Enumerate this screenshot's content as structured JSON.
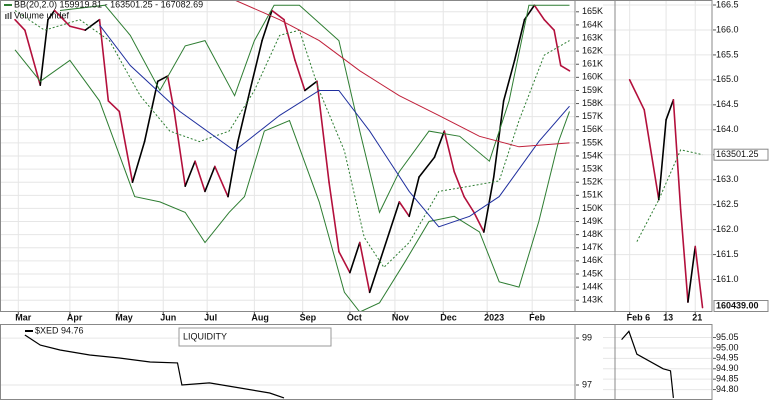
{
  "chart_data": [
    {
      "type": "line",
      "legend": [
        "BB(20,2.0) 159919.81 - 163501.25 - 167082.69",
        "Volume undef"
      ],
      "xlim": [
        0,
        51
      ],
      "ylim": [
        142100,
        165900
      ],
      "grid": true,
      "xticks": [
        {
          "value": 0.3,
          "label": "Mar"
        },
        {
          "value": 5,
          "label": "Apr"
        },
        {
          "value": 9.4,
          "label": "May"
        },
        {
          "value": 13.5,
          "label": "Jun"
        },
        {
          "value": 17.5,
          "label": "Jul"
        },
        {
          "value": 21.8,
          "label": "Aug"
        },
        {
          "value": 26.2,
          "label": "Sep"
        },
        {
          "value": 30.5,
          "label": "Oct"
        },
        {
          "value": 34.6,
          "label": "Nov"
        },
        {
          "value": 39,
          "label": "Dec"
        },
        {
          "value": 43,
          "label": "2023"
        },
        {
          "value": 47.1,
          "label": "Feb"
        }
      ],
      "yticks": [
        {
          "value": 143000,
          "label": "143K"
        },
        {
          "value": 144000,
          "label": "144K"
        },
        {
          "value": 145000,
          "label": "145K"
        },
        {
          "value": 146000,
          "label": "146K"
        },
        {
          "value": 147000,
          "label": "147K"
        },
        {
          "value": 148000,
          "label": "148K"
        },
        {
          "value": 149000,
          "label": "149K"
        },
        {
          "value": 150000,
          "label": "150K"
        },
        {
          "value": 151000,
          "label": "151K"
        },
        {
          "value": 152000,
          "label": "152K"
        },
        {
          "value": 153000,
          "label": "153K"
        },
        {
          "value": 154000,
          "label": "154K"
        },
        {
          "value": 155000,
          "label": "155K"
        },
        {
          "value": 156000,
          "label": "156K"
        },
        {
          "value": 157000,
          "label": "157K"
        },
        {
          "value": 158000,
          "label": "158K"
        },
        {
          "value": 159000,
          "label": "159K"
        },
        {
          "value": 160000,
          "label": "160K"
        },
        {
          "value": 161000,
          "label": "161K"
        },
        {
          "value": 162000,
          "label": "162K"
        },
        {
          "value": 163000,
          "label": "163K"
        },
        {
          "value": 164000,
          "label": "164K"
        },
        {
          "value": 165000,
          "label": "165K"
        }
      ],
      "series": [
        {
          "color": "#b3103c",
          "up_color": "#000000",
          "style": "solid",
          "width": 1.6,
          "x": [
            0,
            0.9,
            2.3,
            3,
            3.6,
            5,
            6.4,
            7.7,
            8.5,
            9.5,
            10.7,
            11.8,
            13,
            13.9,
            14.5,
            15.5,
            16.4,
            17.3,
            18.2,
            19.4,
            20.3,
            21.4,
            22.5,
            23.4,
            24.5,
            25.5,
            26.4,
            27.5,
            28.6,
            29.5,
            30.5,
            31.4,
            32.3,
            33.2,
            34.1,
            35,
            35.9,
            36.8,
            38.2,
            39.1,
            40,
            40.9,
            41.8,
            42.7,
            43.6,
            44.5,
            45.5,
            46.4,
            47.3,
            48.2,
            49.1,
            49.7,
            50.5
          ],
          "values": [
            164400,
            163600,
            159400,
            164400,
            165100,
            163900,
            163600,
            164400,
            158200,
            157400,
            152000,
            155100,
            159700,
            160100,
            157400,
            151700,
            153600,
            151300,
            153200,
            150900,
            155100,
            159000,
            162800,
            165100,
            164400,
            161300,
            159000,
            159700,
            152000,
            146700,
            145100,
            147400,
            143600,
            145900,
            148200,
            150500,
            149400,
            152400,
            153900,
            155900,
            152800,
            150900,
            149700,
            148200,
            152400,
            158200,
            161300,
            164400,
            165500,
            164400,
            163600,
            160900,
            160500
          ]
        },
        {
          "color": "#2e7d32",
          "style": "solid",
          "width": 1,
          "x": [
            4.1,
            8.2,
            10.5,
            13.2,
            15.5,
            17.3,
            20,
            21.8,
            23.6,
            25.9,
            29.5,
            31.4,
            33.2,
            35,
            37.7,
            40.5,
            43.2,
            45,
            46.8,
            50.5
          ],
          "values": [
            165100,
            165500,
            163200,
            159000,
            162400,
            162800,
            158600,
            162800,
            165500,
            165500,
            162800,
            155900,
            149700,
            152800,
            155900,
            155500,
            153600,
            158200,
            165500,
            165500
          ]
        },
        {
          "color": "#2e7d32",
          "style": "solid",
          "width": 1,
          "x": [
            0,
            2.3,
            5,
            7.7,
            10.9,
            13.2,
            15.5,
            17.3,
            19.5,
            20.9,
            22.7,
            25,
            27.7,
            30,
            31.4,
            33.2,
            35.5,
            37.7,
            40,
            42.3,
            44.1,
            45.9,
            47.7,
            49.5,
            50.5
          ],
          "values": [
            162100,
            159700,
            161300,
            158200,
            150900,
            150500,
            149700,
            147400,
            149700,
            150900,
            155900,
            156700,
            150500,
            143600,
            142100,
            142800,
            145900,
            149000,
            149400,
            148200,
            144400,
            144000,
            149000,
            155100,
            157400
          ]
        },
        {
          "color": "#2e7d32",
          "style": "dotted",
          "width": 1,
          "x": [
            0,
            2.7,
            5.9,
            8.6,
            11.4,
            14.1,
            16.8,
            19.5,
            21.8,
            24.1,
            25.9,
            27.7,
            30,
            31.8,
            33.6,
            35.9,
            38.6,
            41.4,
            44.1,
            45.9,
            48.2,
            50.5
          ],
          "values": [
            165100,
            163600,
            164400,
            162800,
            158600,
            155900,
            155100,
            155900,
            159000,
            163200,
            163600,
            159000,
            154400,
            147800,
            145500,
            147400,
            151300,
            151700,
            152100,
            156700,
            161700,
            162800
          ]
        },
        {
          "color": "#1f2f9e",
          "style": "solid",
          "width": 1,
          "x": [
            7.7,
            10.5,
            15,
            20,
            24.1,
            27.7,
            29.5,
            32.3,
            35.9,
            38.6,
            41.4,
            44.1,
            47.7,
            50.5
          ],
          "values": [
            164000,
            160900,
            157400,
            154400,
            157100,
            159000,
            159000,
            155900,
            151300,
            148600,
            149400,
            150900,
            155100,
            157800
          ]
        },
        {
          "color": "#c0203a",
          "style": "solid",
          "width": 1,
          "x": [
            20,
            24.1,
            27.7,
            31.4,
            35,
            38.6,
            42.3,
            45.9,
            50.5
          ],
          "values": [
            165900,
            164400,
            162800,
            160500,
            158600,
            157100,
            155500,
            154700,
            155000
          ]
        }
      ]
    },
    {
      "type": "line",
      "xlim": [
        -1.6,
        11.3
      ],
      "ylim": [
        160.35,
        166.6
      ],
      "grid": true,
      "xticks": [
        {
          "value": 0,
          "label": "Feb 6"
        },
        {
          "value": 5,
          "label": "13"
        },
        {
          "value": 9,
          "label": "21"
        }
      ],
      "yticks": [
        {
          "value": 161,
          "label": "161.0"
        },
        161.5,
        {
          "value": 162,
          "label": "162.0"
        },
        162.5,
        {
          "value": 163,
          "label": "163.0"
        },
        163.5,
        {
          "value": 164,
          "label": "164.0"
        },
        164.5,
        {
          "value": 165,
          "label": "165.0"
        },
        165.5,
        {
          "value": 166,
          "label": "166.0"
        },
        166.5
      ],
      "series": [
        {
          "color": "#b3103c",
          "up_color": "#000000",
          "style": "solid",
          "width": 1.6,
          "x": [
            0,
            2,
            4,
            5,
            6,
            7,
            8,
            9,
            10
          ],
          "values": [
            165.0,
            164.4,
            162.6,
            164.2,
            164.6,
            162.4,
            160.55,
            161.66,
            160.439
          ],
          "value_labels": [
            null,
            null,
            null,
            null,
            null,
            null,
            null,
            null,
            "160439.00"
          ]
        },
        {
          "color": "#2e7d32",
          "style": "dotted",
          "width": 1,
          "x": [
            1,
            4,
            7,
            10
          ],
          "values": [
            161.76,
            162.6,
            163.6,
            163.50125
          ],
          "value_labels": [
            null,
            null,
            null,
            "163501.25"
          ]
        }
      ]
    },
    {
      "type": "line",
      "title": "$XED 94.76",
      "annotation": "LIQUIDITY",
      "xlim": [
        0,
        51
      ],
      "ylim": [
        96.36,
        99.6
      ],
      "grid": true,
      "yticks": [
        97,
        99
      ],
      "series": [
        {
          "color": "#000000",
          "style": "solid",
          "width": 1.2,
          "x": [
            0.9,
            2.3,
            4.1,
            6.8,
            9.5,
            12.3,
            14.8,
            15.2,
            17.7,
            20.5,
            23.2,
            24.5
          ],
          "values": [
            99.13,
            98.7,
            98.49,
            98.28,
            98.15,
            97.98,
            97.94,
            97.0,
            97.09,
            96.87,
            96.66,
            96.45
          ]
        }
      ]
    },
    {
      "type": "line",
      "xlim": [
        -1.6,
        11.3
      ],
      "ylim": [
        94.75,
        95.115
      ],
      "grid": true,
      "yticks": [
        {
          "value": 94.8,
          "label": "94.80"
        },
        94.85,
        {
          "value": 94.9,
          "label": "94.90"
        },
        94.95,
        {
          "value": 95,
          "label": "95.00"
        },
        95.05
      ],
      "series": [
        {
          "color": "#000000",
          "style": "solid",
          "width": 1.2,
          "x": [
            -1.1,
            -0.1,
            1,
            4.6,
            5.6,
            6
          ],
          "values": [
            95.04,
            95.08,
            94.97,
            94.9,
            94.89,
            94.76
          ]
        }
      ]
    }
  ]
}
